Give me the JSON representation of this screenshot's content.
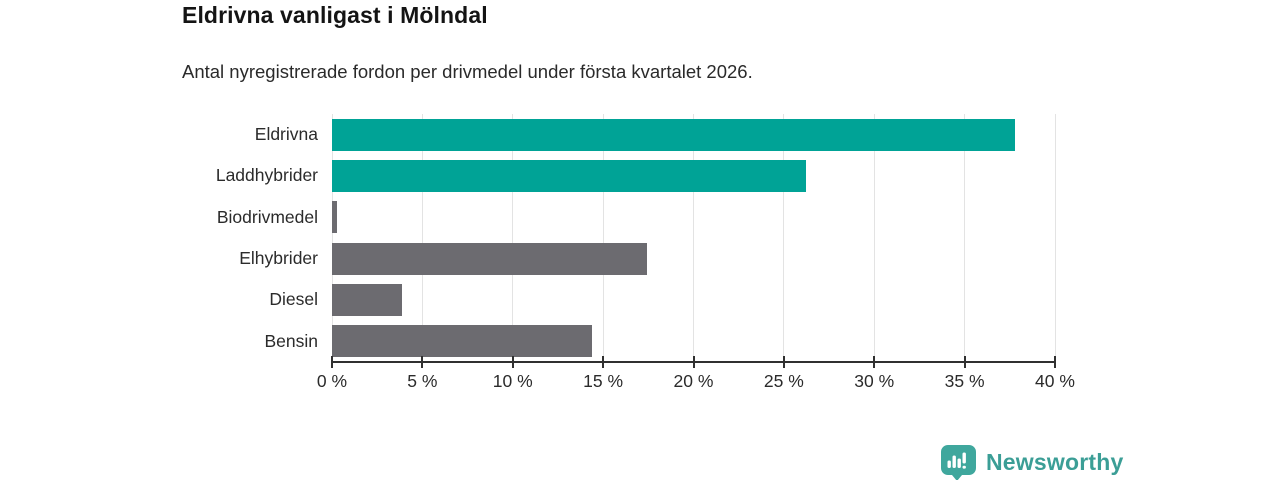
{
  "title": "Eldrivna vanligast i Mölndal",
  "subtitle": "Antal nyregistrerade fordon per drivmedel under första kvartalet 2026.",
  "chart_data": {
    "type": "bar",
    "orientation": "horizontal",
    "title": "Eldrivna vanligast i Mölndal",
    "subtitle": "Antal nyregistrerade fordon per drivmedel under första kvartalet 2026.",
    "categories": [
      "Eldrivna",
      "Laddhybrider",
      "Biodrivmedel",
      "Elhybrider",
      "Diesel",
      "Bensin"
    ],
    "values": [
      37.8,
      26.2,
      0.3,
      17.4,
      3.9,
      14.4
    ],
    "unit": "%",
    "xlim": [
      0,
      40
    ],
    "x_ticks": [
      0,
      5,
      10,
      15,
      20,
      25,
      30,
      35,
      40
    ],
    "x_tick_labels": [
      "0 %",
      "5 %",
      "10 %",
      "15 %",
      "20 %",
      "25 %",
      "30 %",
      "35 %",
      "40 %"
    ],
    "bar_colors": [
      "#00a396",
      "#00a396",
      "#6c6b70",
      "#6c6b70",
      "#6c6b70",
      "#6c6b70"
    ],
    "highlight_color": "#00a396",
    "default_color": "#6c6b70",
    "gridline_color": "#e3e3e3",
    "axis_color": "#303030",
    "grid": true,
    "legend": false
  },
  "branding": {
    "logo_text": "Newsworthy",
    "logo_text_color": "#3b9e96",
    "logo_icon": "newsworthy-chart-bubble-icon",
    "logo_icon_color": "#3fa79d"
  }
}
